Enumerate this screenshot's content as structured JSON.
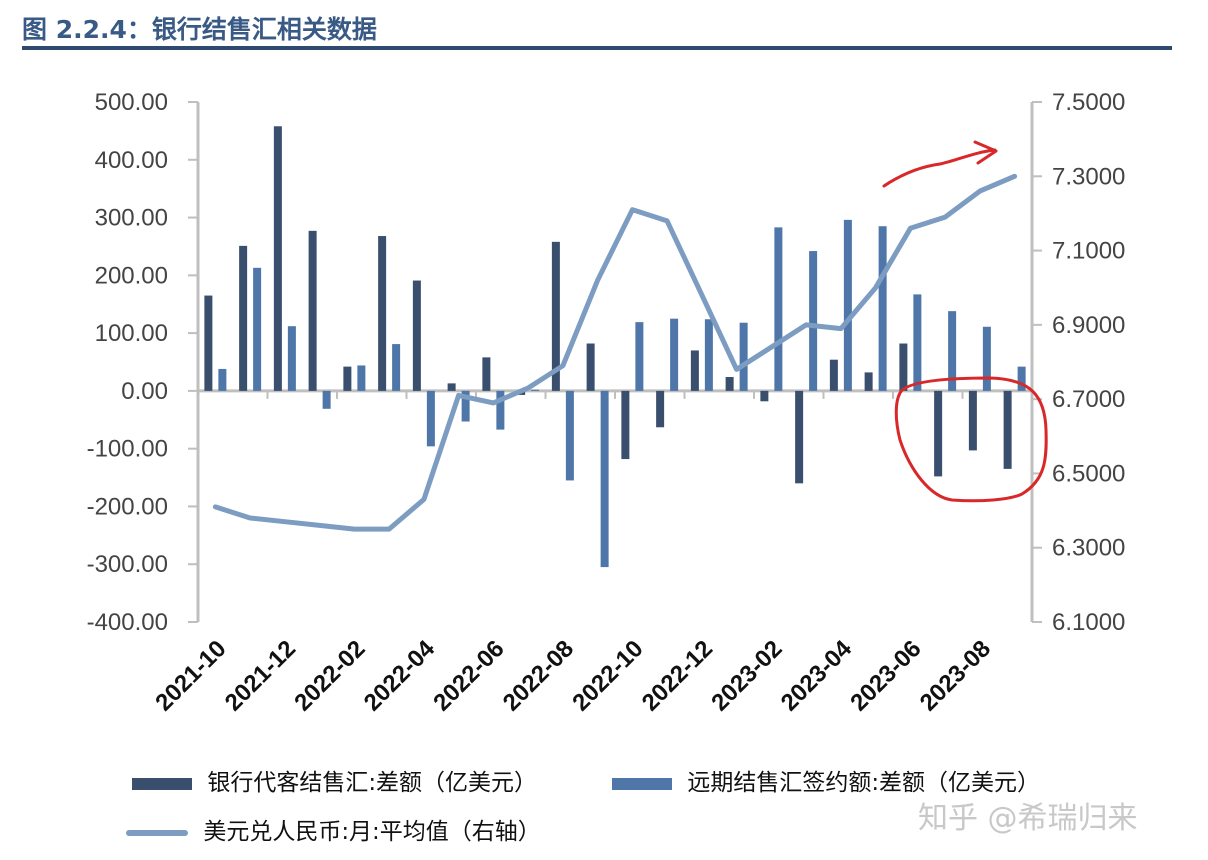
{
  "figure_title": "图 2.2.4：银行结售汇相关数据",
  "watermark": "知乎 @希瑞归来",
  "colors": {
    "series1": "#3a4f6e",
    "series2": "#4e76a8",
    "line": "#7d9cc1",
    "annotation": "#d8282a",
    "axis": "#bfbfbf",
    "title": "#3a5a86"
  },
  "chart_data": {
    "type": "bar+line",
    "categories": [
      "2021-10",
      "2021-11",
      "2021-12",
      "2022-01",
      "2022-02",
      "2022-03",
      "2022-04",
      "2022-05",
      "2022-06",
      "2022-07",
      "2022-08",
      "2022-09",
      "2022-10",
      "2022-11",
      "2022-12",
      "2023-01",
      "2023-02",
      "2023-03",
      "2023-04",
      "2023-05",
      "2023-06",
      "2023-07",
      "2023-08",
      "2023-09"
    ],
    "x_tick_labels": [
      "2021-10",
      "2021-12",
      "2022-02",
      "2022-04",
      "2022-06",
      "2022-08",
      "2022-10",
      "2022-12",
      "2023-02",
      "2023-04",
      "2023-06",
      "2023-08"
    ],
    "left_axis": {
      "ylim": [
        -400,
        500
      ],
      "ticks": [
        "500.00",
        "400.00",
        "300.00",
        "200.00",
        "100.00",
        "0.00",
        "-100.00",
        "-200.00",
        "-300.00",
        "-400.00"
      ]
    },
    "right_axis": {
      "ylim": [
        6.1,
        7.5
      ],
      "ticks": [
        "7.5000",
        "7.3000",
        "7.1000",
        "6.9000",
        "6.7000",
        "6.5000",
        "6.3000",
        "6.1000"
      ]
    },
    "series": [
      {
        "name": "银行代客结售汇:差额（亿美元）",
        "type": "bar",
        "axis": "left",
        "values": [
          165,
          251,
          458,
          277,
          42,
          268,
          191,
          13,
          58,
          -7,
          258,
          82,
          -118,
          -63,
          70,
          24,
          -18,
          -160,
          54,
          32,
          82,
          -148,
          -103,
          -135
        ]
      },
      {
        "name": "远期结售汇签约额:差额（亿美元）",
        "type": "bar",
        "axis": "left",
        "values": [
          38,
          213,
          112,
          -31,
          44,
          81,
          -96,
          -53,
          -67,
          2,
          -155,
          -305,
          119,
          125,
          124,
          118,
          283,
          242,
          296,
          285,
          167,
          138,
          111,
          42
        ]
      },
      {
        "name": "美元兑人民币:月:平均值（右轴）",
        "type": "line",
        "axis": "right",
        "values": [
          6.41,
          6.38,
          6.37,
          6.36,
          6.35,
          6.35,
          6.43,
          6.71,
          6.69,
          6.73,
          6.79,
          7.02,
          7.21,
          7.18,
          6.98,
          6.78,
          6.84,
          6.9,
          6.89,
          7.0,
          7.16,
          7.19,
          7.26,
          7.3
        ]
      }
    ]
  }
}
